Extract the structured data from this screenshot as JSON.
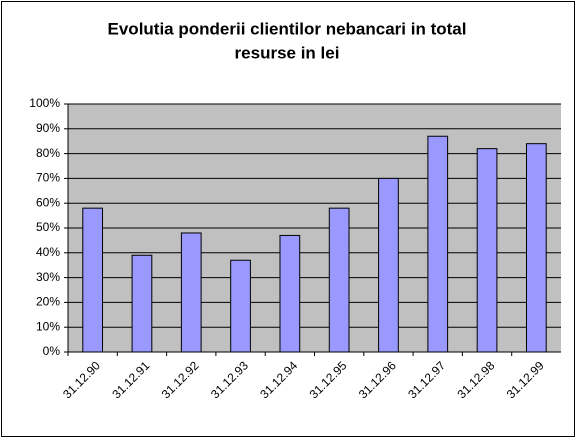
{
  "chart_data": {
    "type": "bar",
    "title": [
      "Evolutia ponderii clientilor nebancari in total",
      "resurse in lei"
    ],
    "categories": [
      "31.12.90",
      "31.12.91",
      "31.12.92",
      "31.12.93",
      "31.12.94",
      "31.12.95",
      "31.12.96",
      "31.12.97",
      "31.12.98",
      "31.12.99"
    ],
    "values": [
      58,
      39,
      48,
      37,
      47,
      58,
      70,
      87,
      82,
      84
    ],
    "color": "#9999ff",
    "ylim": [
      0,
      100
    ],
    "yticks": [
      {
        "value": 0,
        "label": "0%"
      },
      {
        "value": 10,
        "label": "10%"
      },
      {
        "value": 20,
        "label": "20%"
      },
      {
        "value": 30,
        "label": "30%"
      },
      {
        "value": 40,
        "label": "40%"
      },
      {
        "value": 50,
        "label": "50%"
      },
      {
        "value": 60,
        "label": "60%"
      },
      {
        "value": 70,
        "label": "70%"
      },
      {
        "value": 80,
        "label": "80%"
      },
      {
        "value": 90,
        "label": "90%"
      },
      {
        "value": 100,
        "label": "100%"
      }
    ],
    "grid": true
  }
}
